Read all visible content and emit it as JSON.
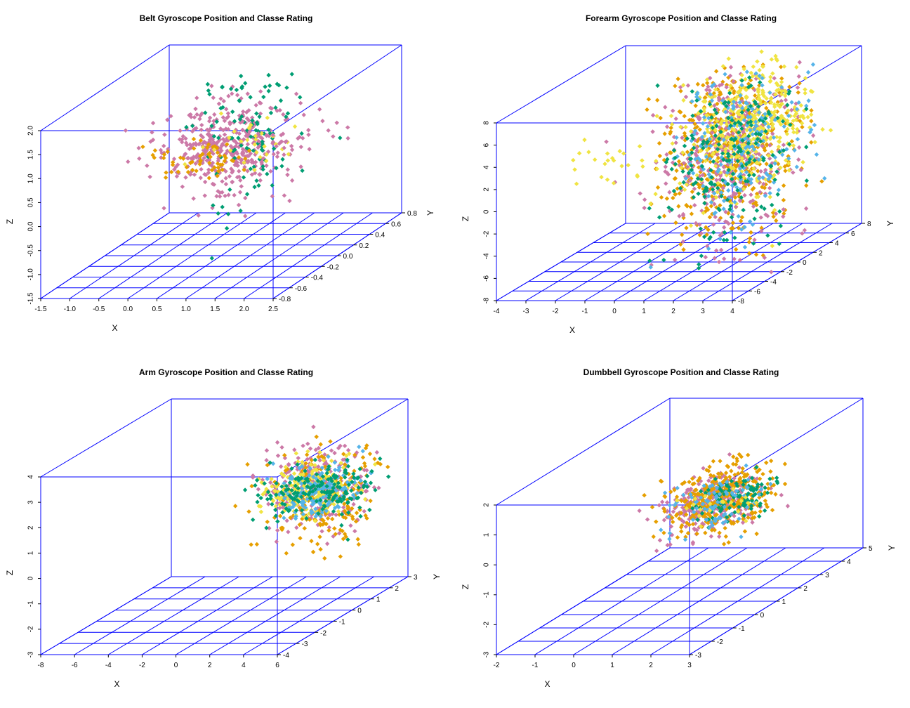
{
  "palette": [
    "#CC79A7",
    "#E69F00",
    "#009E73",
    "#F0E442",
    "#56B4E9"
  ],
  "box_color": "#0000FF",
  "chart_data": [
    {
      "type": "scatter",
      "title": "Belt Gyroscope Position and Classe Rating",
      "xlabel": "X",
      "ylabel": "Y",
      "zlabel": "Z",
      "xlim": [
        -1.5,
        2.5
      ],
      "ylim": [
        -0.8,
        0.8
      ],
      "zlim": [
        -1.5,
        2.0
      ],
      "x_ticks": [
        "-1.5",
        "-1.0",
        "-0.5",
        "0.0",
        "0.5",
        "1.0",
        "1.5",
        "2.0",
        "2.5"
      ],
      "y_ticks": [
        "-0.8",
        "-0.6",
        "-0.4",
        "-0.2",
        "0.0",
        "0.2",
        "0.4",
        "0.6",
        "0.8"
      ],
      "z_ticks": [
        "-1.5",
        "-1.0",
        "-0.5",
        "0.0",
        "0.5",
        "1.0",
        "1.5",
        "2.0"
      ],
      "grid": true,
      "clusters": [
        {
          "color": 0,
          "n": 420,
          "cx": 0.55,
          "cy": 0.0,
          "cz": 0.75,
          "sx": 0.55,
          "sy": 0.12,
          "sz": 0.45
        },
        {
          "color": 2,
          "n": 110,
          "cx": 0.85,
          "cy": 0.1,
          "cz": 0.9,
          "sx": 0.35,
          "sy": 0.15,
          "sz": 0.85
        },
        {
          "color": 1,
          "n": 60,
          "cx": 0.1,
          "cy": 0.0,
          "cz": 0.5,
          "sx": 0.4,
          "sy": 0.1,
          "sz": 0.15
        },
        {
          "color": 3,
          "n": 30,
          "cx": 0.9,
          "cy": 0.0,
          "cz": 0.8,
          "sx": 0.4,
          "sy": 0.1,
          "sz": 0.3
        },
        {
          "color": 0,
          "n": 20,
          "cx": 1.8,
          "cy": 0.0,
          "cz": 1.0,
          "sx": 0.45,
          "sy": 0.1,
          "sz": 0.15
        }
      ]
    },
    {
      "type": "scatter",
      "title": "Forearm Gyroscope Position and Classe Rating",
      "xlabel": "X",
      "ylabel": "Y",
      "zlabel": "Z",
      "xlim": [
        -4,
        4
      ],
      "ylim": [
        -8,
        8
      ],
      "zlim": [
        -8,
        8
      ],
      "x_ticks": [
        "-4",
        "-3",
        "-2",
        "-1",
        "0",
        "1",
        "2",
        "3",
        "4"
      ],
      "y_ticks": [
        "-8",
        "-6",
        "-4",
        "-2",
        "0",
        "2",
        "4",
        "6",
        "8"
      ],
      "z_ticks": [
        "-8",
        "-6",
        "-4",
        "-2",
        "0",
        "2",
        "4",
        "6",
        "8"
      ],
      "grid": true,
      "clusters": [
        {
          "color": 1,
          "n": 480,
          "cx": 1.6,
          "cy": 0.5,
          "cz": 1.5,
          "sx": 0.9,
          "sy": 2.5,
          "sz": 3.6
        },
        {
          "color": 0,
          "n": 380,
          "cx": 1.6,
          "cy": 0.5,
          "cz": 1.2,
          "sx": 0.9,
          "sy": 2.5,
          "sz": 3.8
        },
        {
          "color": 3,
          "n": 420,
          "cx": 1.9,
          "cy": 1.5,
          "cz": 3.5,
          "sx": 0.8,
          "sy": 2.6,
          "sz": 2.6
        },
        {
          "color": 4,
          "n": 200,
          "cx": 1.7,
          "cy": 1.0,
          "cz": 2.0,
          "sx": 0.8,
          "sy": 2.5,
          "sz": 3.2
        },
        {
          "color": 2,
          "n": 200,
          "cx": 1.5,
          "cy": 0.5,
          "cz": 1.0,
          "sx": 0.9,
          "sy": 2.6,
          "sz": 3.6
        },
        {
          "color": 3,
          "n": 25,
          "cx": -2.0,
          "cy": 0.0,
          "cz": 1.0,
          "sx": 1.0,
          "sy": 1.0,
          "sz": 0.8
        }
      ]
    },
    {
      "type": "scatter",
      "title": "Arm Gyroscope Position and Classe Rating",
      "xlabel": "X",
      "ylabel": "Y",
      "zlabel": "Z",
      "xlim": [
        -8,
        6
      ],
      "ylim": [
        -4,
        3
      ],
      "zlim": [
        -3,
        4
      ],
      "x_ticks": [
        "-8",
        "-6",
        "-4",
        "-2",
        "0",
        "2",
        "4",
        "6"
      ],
      "y_ticks": [
        "-4",
        "-3",
        "-2",
        "-1",
        "0",
        "1",
        "2",
        "3"
      ],
      "z_ticks": [
        "-3",
        "-2",
        "-1",
        "0",
        "1",
        "2",
        "3",
        "4"
      ],
      "grid": true,
      "clusters": [
        {
          "color": 0,
          "n": 260,
          "cx": 3.3,
          "cy": 0.5,
          "cz": 1.6,
          "sx": 1.5,
          "sy": 0.5,
          "sz": 0.8
        },
        {
          "color": 1,
          "n": 240,
          "cx": 3.8,
          "cy": 0.4,
          "cz": 1.2,
          "sx": 1.5,
          "sy": 0.5,
          "sz": 0.9
        },
        {
          "color": 3,
          "n": 200,
          "cx": 2.9,
          "cy": 0.5,
          "cz": 1.6,
          "sx": 1.2,
          "sy": 0.4,
          "sz": 0.5
        },
        {
          "color": 4,
          "n": 160,
          "cx": 3.5,
          "cy": 0.5,
          "cz": 1.5,
          "sx": 1.2,
          "sy": 0.5,
          "sz": 0.5
        },
        {
          "color": 2,
          "n": 170,
          "cx": 3.6,
          "cy": 0.5,
          "cz": 1.5,
          "sx": 1.6,
          "sy": 0.5,
          "sz": 0.5
        }
      ]
    },
    {
      "type": "scatter",
      "title": "Dumbbell Gyroscope Position and Classe Rating",
      "xlabel": "X",
      "ylabel": "Y",
      "zlabel": "Z",
      "xlim": [
        -2,
        3
      ],
      "ylim": [
        -3,
        5
      ],
      "zlim": [
        -3,
        2
      ],
      "x_ticks": [
        "-2",
        "-1",
        "0",
        "1",
        "2",
        "3"
      ],
      "y_ticks": [
        "-3",
        "-2",
        "-1",
        "0",
        "1",
        "2",
        "3",
        "4",
        "5"
      ],
      "z_ticks": [
        "-3",
        "-2",
        "-1",
        "0",
        "1",
        "2"
      ],
      "grid": true,
      "clusters": [
        {
          "color": 0,
          "n": 300,
          "cx": 1.6,
          "cy": 0.6,
          "cz": 0.5,
          "sx": 0.5,
          "sy": 0.7,
          "sz": 0.4
        },
        {
          "color": 1,
          "n": 340,
          "cx": 1.7,
          "cy": 0.7,
          "cz": 0.6,
          "sx": 0.55,
          "sy": 0.8,
          "sz": 0.5
        },
        {
          "color": 2,
          "n": 100,
          "cx": 2.2,
          "cy": 0.6,
          "cz": 0.6,
          "sx": 0.4,
          "sy": 0.5,
          "sz": 0.3
        },
        {
          "color": 4,
          "n": 80,
          "cx": 1.7,
          "cy": 0.5,
          "cz": 0.5,
          "sx": 0.45,
          "sy": 0.6,
          "sz": 0.4
        },
        {
          "color": 3,
          "n": 20,
          "cx": 1.8,
          "cy": 0.4,
          "cz": 0.5,
          "sx": 0.4,
          "sy": 0.5,
          "sz": 0.3
        }
      ]
    }
  ]
}
